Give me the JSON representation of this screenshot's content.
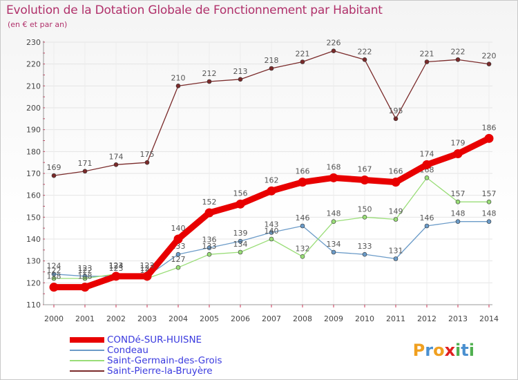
{
  "chart_data": {
    "type": "line",
    "title": "Evolution de la Dotation Globale de Fonctionnement par Habitant",
    "subtitle": "(en € et par an)",
    "xlabel": "",
    "ylabel": "",
    "categories": [
      "2000",
      "2001",
      "2002",
      "2003",
      "2004",
      "2005",
      "2006",
      "2007",
      "2008",
      "2009",
      "2010",
      "2011",
      "2012",
      "2013",
      "2014"
    ],
    "ylim": [
      110,
      230
    ],
    "yticks": [
      110,
      120,
      130,
      140,
      150,
      160,
      170,
      180,
      190,
      200,
      210,
      220,
      230
    ],
    "grid": true,
    "legend_position": "bottom-left",
    "series": [
      {
        "name": "CONDé-SUR-HUISNE",
        "color": "#e80000",
        "emphasis": "thick",
        "values": [
          118,
          118,
          123,
          123,
          140,
          152,
          156,
          162,
          166,
          168,
          167,
          166,
          174,
          179,
          186
        ]
      },
      {
        "name": "Condeau",
        "color": "#6b9bc8",
        "emphasis": "thin",
        "values": [
          124,
          123,
          123,
          123,
          133,
          136,
          139,
          143,
          146,
          134,
          133,
          131,
          146,
          148,
          148
        ]
      },
      {
        "name": "Saint-Germain-des-Grois",
        "color": "#99dd77",
        "emphasis": "thin",
        "values": [
          122,
          122,
          124,
          122,
          127,
          133,
          134,
          140,
          132,
          148,
          150,
          149,
          168,
          157,
          157
        ]
      },
      {
        "name": "Saint-Pierre-la-Bruyère",
        "color": "#7a2a2a",
        "emphasis": "thin",
        "values": [
          169,
          171,
          174,
          175,
          210,
          212,
          213,
          218,
          221,
          226,
          222,
          195,
          221,
          222,
          220
        ]
      }
    ]
  },
  "logo": {
    "letters": [
      "P",
      "r",
      "o",
      "x",
      "i",
      "t",
      "i"
    ],
    "colors": [
      "#f0a020",
      "#4a90d0",
      "#f0a020",
      "#e02020",
      "#50b050",
      "#4a90d0",
      "#50b050"
    ]
  }
}
